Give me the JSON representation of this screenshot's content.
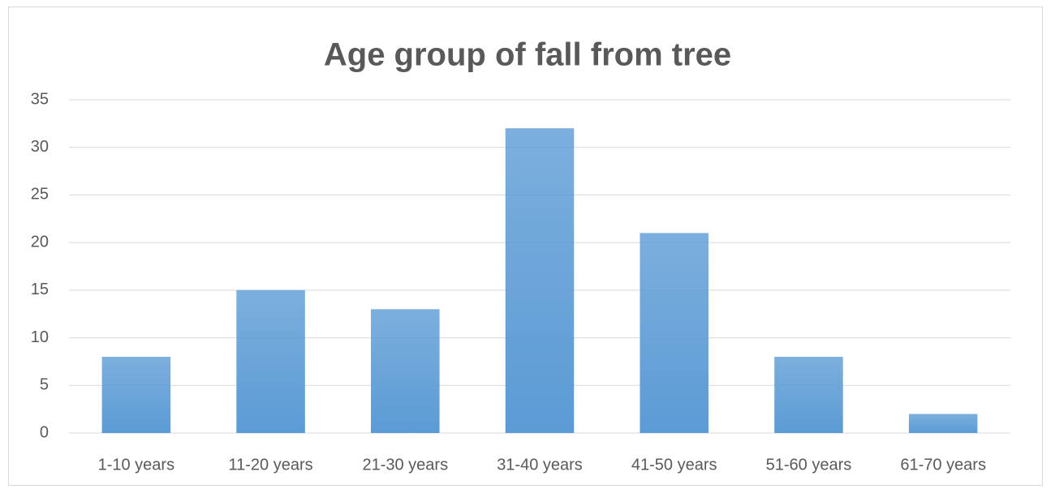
{
  "chart_data": {
    "type": "bar",
    "title": "Age group of fall from tree",
    "categories": [
      "1-10 years",
      "11-20 years",
      "21-30 years",
      "31-40 years",
      "41-50 years",
      "51-60 years",
      "61-70 years"
    ],
    "values": [
      8,
      15,
      13,
      32,
      21,
      8,
      2
    ],
    "color": "#5b9bd5",
    "ylim": [
      0,
      35
    ],
    "yticks": [
      0,
      5,
      10,
      15,
      20,
      25,
      30,
      35
    ],
    "grid": true
  }
}
